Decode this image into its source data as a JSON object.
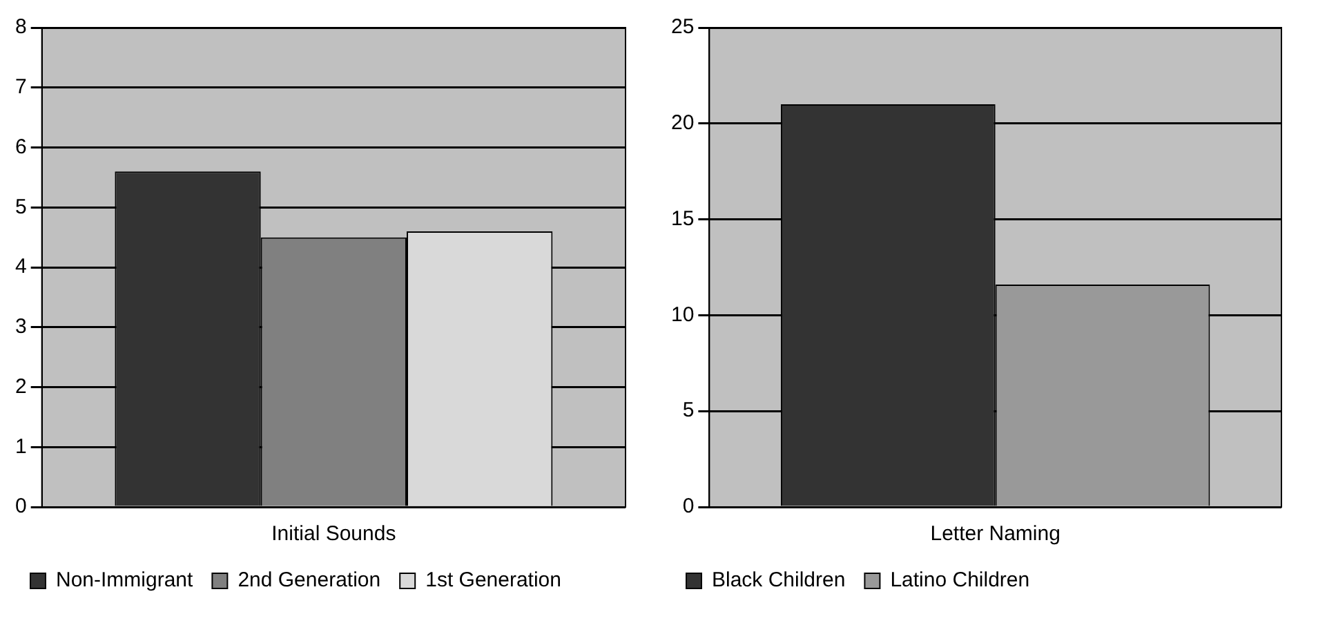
{
  "chart_data": [
    {
      "type": "bar",
      "categories": [
        "Initial Sounds"
      ],
      "series": [
        {
          "name": "Non-Immigrant",
          "color": "#333333",
          "values": [
            5.6
          ]
        },
        {
          "name": "2nd Generation",
          "color": "#808080",
          "values": [
            4.5
          ]
        },
        {
          "name": "1st Generation",
          "color": "#d9d9d9",
          "values": [
            4.6
          ]
        }
      ],
      "ylim": [
        0,
        8
      ],
      "yticks": [
        0,
        1,
        2,
        3,
        4,
        5,
        6,
        7,
        8
      ],
      "grid": "y",
      "legend": "bottom"
    },
    {
      "type": "bar",
      "categories": [
        "Letter Naming"
      ],
      "series": [
        {
          "name": "Black Children",
          "color": "#333333",
          "values": [
            21
          ]
        },
        {
          "name": "Latino Children",
          "color": "#999999",
          "values": [
            11.6
          ]
        }
      ],
      "ylim": [
        0,
        25
      ],
      "yticks": [
        0,
        5,
        10,
        15,
        20,
        25
      ],
      "grid": "y",
      "legend": "bottom"
    }
  ]
}
